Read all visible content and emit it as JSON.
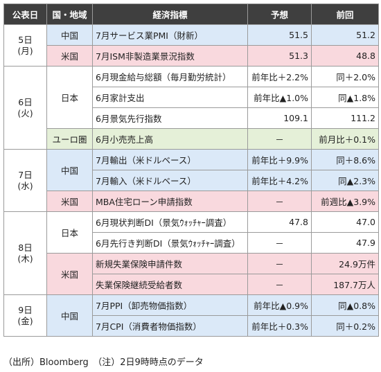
{
  "headers": [
    "公表日",
    "国・地域",
    "経済指標",
    "予想",
    "前回"
  ],
  "dates": {
    "d5": {
      "day": "5日",
      "dow": "(月)"
    },
    "d6": {
      "day": "6日",
      "dow": "(火)"
    },
    "d7": {
      "day": "7日",
      "dow": "(水)"
    },
    "d8": {
      "day": "8日",
      "dow": "(木)"
    },
    "d9": {
      "day": "9日",
      "dow": "(金)"
    }
  },
  "regions": {
    "r5_cn": "中国",
    "r5_us": "米国",
    "r6_jp": "日本",
    "r6_eu": "ユーロ圏",
    "r7_cn": "中国",
    "r7_us": "米国",
    "r8_jp": "日本",
    "r8_us": "米国",
    "r9_cn": "中国"
  },
  "rows": [
    {
      "indicator": "7月サービス業PMI（財新）",
      "forecast": "51.5",
      "previous": "51.2"
    },
    {
      "indicator": "7月ISM非製造業景況指数",
      "forecast": "51.3",
      "previous": "48.8"
    },
    {
      "indicator": "6月現金給与総額（毎月勤労統計）",
      "forecast": "前年比＋2.2%",
      "previous": "同＋2.0%"
    },
    {
      "indicator": "6月家計支出",
      "forecast": "前年比▲1.0%",
      "previous": "同▲1.8%"
    },
    {
      "indicator": "6月景気先行指数",
      "forecast": "109.1",
      "previous": "111.2"
    },
    {
      "indicator": "6月小売売上高",
      "forecast": "－",
      "previous": "前月比＋0.1%"
    },
    {
      "indicator": "7月輸出（米ドルベース）",
      "forecast": "前年比＋9.9%",
      "previous": "同＋8.6%"
    },
    {
      "indicator": "7月輸入（米ドルベース）",
      "forecast": "前年比＋4.2%",
      "previous": "同▲2.3%"
    },
    {
      "indicator": "MBA住宅ローン申請指数",
      "forecast": "－",
      "previous": "前週比▲3.9%"
    },
    {
      "indicator": "6月現状判断DI（景気ｳｫｯﾁｬｰ調査）",
      "forecast": "47.8",
      "previous": "47.0"
    },
    {
      "indicator": "6月先行き判断DI（景気ｳｫｯﾁｬｰ調査）",
      "forecast": "－",
      "previous": "47.9"
    },
    {
      "indicator": "新規失業保険申請件数",
      "forecast": "－",
      "previous": "24.9万件"
    },
    {
      "indicator": "失業保険継続受給者数",
      "forecast": "－",
      "previous": "187.7万人"
    },
    {
      "indicator": "7月PPI（卸売物価指数）",
      "forecast": "前年比▲0.9%",
      "previous": "同▲0.8%"
    },
    {
      "indicator": "7月CPI（消費者物価指数）",
      "forecast": "前年比＋0.3%",
      "previous": "同＋0.2%"
    }
  ],
  "footer": "（出所）Bloomberg　（注）2日9時時点のデータ"
}
